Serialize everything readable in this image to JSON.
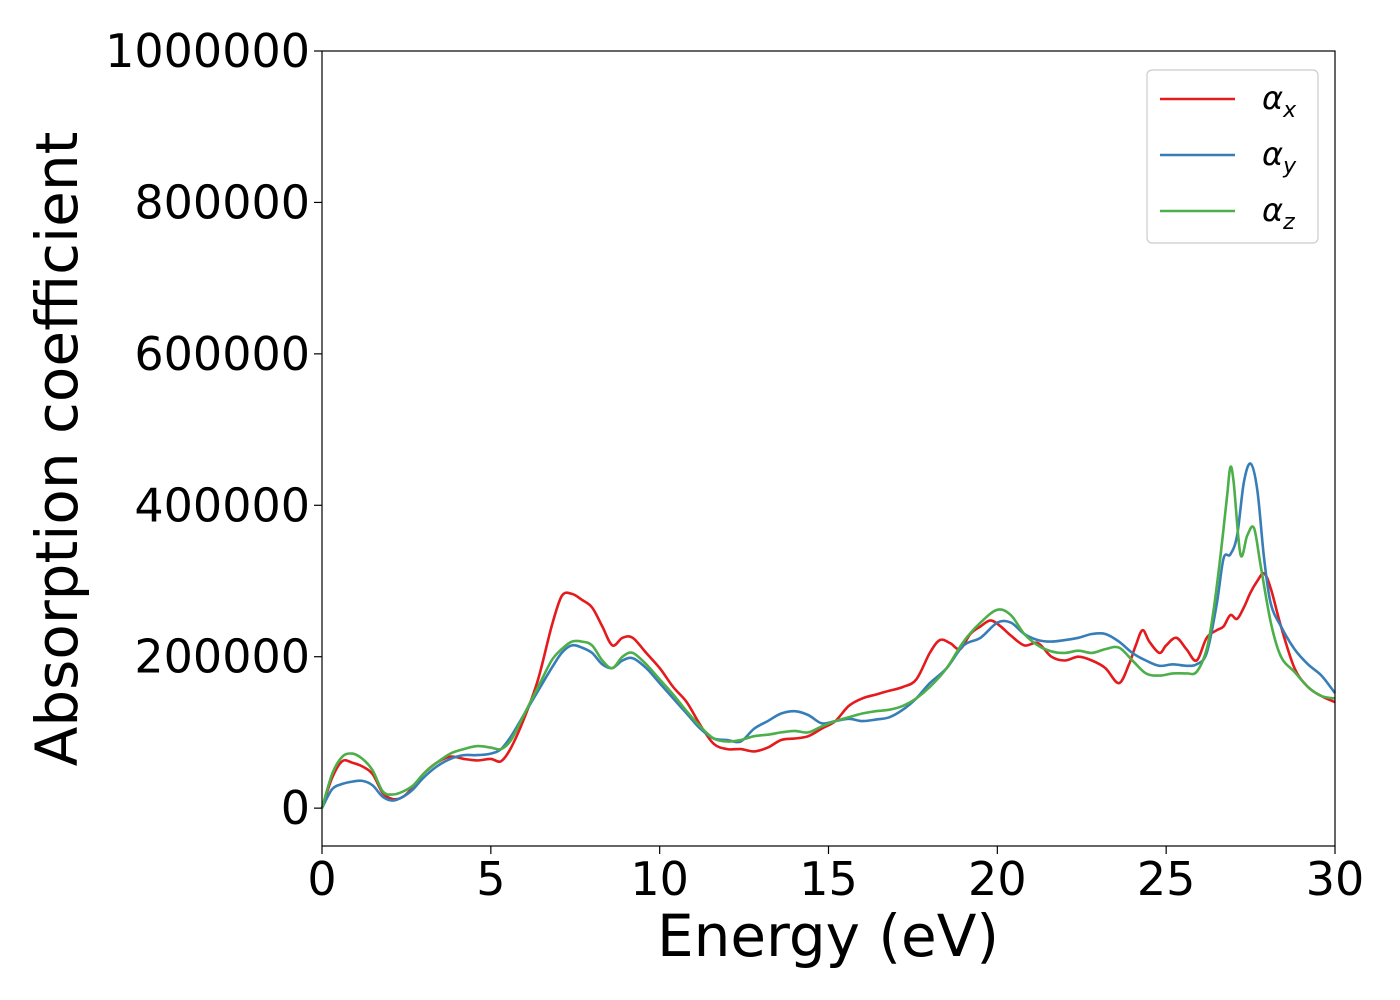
{
  "chart_data": {
    "type": "line",
    "title": "",
    "xlabel": "Energy (eV)",
    "ylabel": "Absorption coefficient",
    "xlim": [
      0,
      30
    ],
    "ylim": [
      -50000,
      1000000
    ],
    "xticks": [
      0,
      5,
      10,
      15,
      20,
      25,
      30
    ],
    "xtick_labels": [
      "0",
      "5",
      "10",
      "15",
      "20",
      "25",
      "30"
    ],
    "yticks": [
      0,
      200000,
      400000,
      600000,
      800000,
      1000000
    ],
    "ytick_labels": [
      "0",
      "200000",
      "400000",
      "600000",
      "800000",
      "1000000"
    ],
    "grid": false,
    "legend_position": "top-right",
    "series": [
      {
        "name": "α_x",
        "legend_base": "α",
        "legend_sub": "x",
        "color": "#e41a1c",
        "x": [
          0,
          0.3,
          0.6,
          0.9,
          1.2,
          1.5,
          1.8,
          2.1,
          2.4,
          2.7,
          3.0,
          3.4,
          3.8,
          4.2,
          4.6,
          5.0,
          5.3,
          5.6,
          6.0,
          6.4,
          6.8,
          7.1,
          7.4,
          7.7,
          8.0,
          8.3,
          8.6,
          8.9,
          9.2,
          9.6,
          10.0,
          10.4,
          10.8,
          11.2,
          11.6,
          12.0,
          12.4,
          12.8,
          13.2,
          13.6,
          14.0,
          14.4,
          14.8,
          15.2,
          15.6,
          16.0,
          16.4,
          16.8,
          17.2,
          17.6,
          18.0,
          18.3,
          18.6,
          18.9,
          19.2,
          19.5,
          19.8,
          20.1,
          20.4,
          20.8,
          21.2,
          21.6,
          22.0,
          22.4,
          22.8,
          23.2,
          23.6,
          23.9,
          24.1,
          24.3,
          24.5,
          24.8,
          25.0,
          25.3,
          25.6,
          25.9,
          26.2,
          26.5,
          26.7,
          26.9,
          27.1,
          27.3,
          27.5,
          27.7,
          27.9,
          28.1,
          28.4,
          28.8,
          29.2,
          29.6,
          30.0
        ],
        "y": [
          0,
          40000,
          62000,
          60000,
          55000,
          45000,
          20000,
          12000,
          15000,
          28000,
          45000,
          60000,
          68000,
          65000,
          63000,
          65000,
          62000,
          80000,
          120000,
          170000,
          240000,
          280000,
          283000,
          275000,
          265000,
          240000,
          215000,
          225000,
          225000,
          205000,
          185000,
          160000,
          140000,
          110000,
          85000,
          78000,
          78000,
          75000,
          80000,
          90000,
          92000,
          95000,
          105000,
          115000,
          135000,
          145000,
          150000,
          155000,
          160000,
          170000,
          205000,
          222000,
          218000,
          210000,
          230000,
          240000,
          248000,
          240000,
          228000,
          215000,
          218000,
          200000,
          195000,
          200000,
          195000,
          185000,
          165000,
          190000,
          215000,
          235000,
          220000,
          205000,
          215000,
          225000,
          210000,
          195000,
          225000,
          235000,
          240000,
          255000,
          250000,
          265000,
          285000,
          300000,
          310000,
          290000,
          240000,
          185000,
          160000,
          148000,
          140000
        ]
      },
      {
        "name": "α_y",
        "legend_base": "α",
        "legend_sub": "y",
        "color": "#377eb8",
        "x": [
          0,
          0.3,
          0.6,
          0.9,
          1.2,
          1.5,
          1.8,
          2.1,
          2.4,
          2.7,
          3.0,
          3.4,
          3.8,
          4.2,
          4.6,
          5.0,
          5.3,
          5.6,
          6.0,
          6.4,
          6.8,
          7.1,
          7.4,
          7.7,
          8.0,
          8.3,
          8.6,
          8.9,
          9.2,
          9.6,
          10.0,
          10.4,
          10.8,
          11.2,
          11.6,
          12.0,
          12.4,
          12.8,
          13.2,
          13.6,
          14.0,
          14.4,
          14.8,
          15.2,
          15.6,
          16.0,
          16.4,
          16.8,
          17.2,
          17.6,
          18.0,
          18.5,
          19.0,
          19.5,
          20.0,
          20.4,
          20.8,
          21.2,
          21.6,
          22.0,
          22.4,
          22.8,
          23.2,
          23.6,
          24.0,
          24.4,
          24.8,
          25.2,
          25.6,
          25.9,
          26.2,
          26.5,
          26.7,
          26.9,
          27.1,
          27.3,
          27.5,
          27.7,
          27.9,
          28.1,
          28.4,
          28.8,
          29.2,
          29.6,
          30.0
        ],
        "y": [
          0,
          25000,
          32000,
          35000,
          36000,
          30000,
          15000,
          10000,
          15000,
          25000,
          40000,
          55000,
          65000,
          70000,
          70000,
          72000,
          78000,
          95000,
          125000,
          155000,
          185000,
          205000,
          215000,
          212000,
          205000,
          190000,
          185000,
          195000,
          198000,
          185000,
          165000,
          145000,
          125000,
          105000,
          92000,
          90000,
          88000,
          105000,
          115000,
          125000,
          128000,
          123000,
          112000,
          115000,
          118000,
          115000,
          117000,
          120000,
          130000,
          145000,
          165000,
          185000,
          215000,
          225000,
          245000,
          245000,
          230000,
          222000,
          220000,
          222000,
          225000,
          230000,
          230000,
          220000,
          205000,
          195000,
          188000,
          190000,
          188000,
          190000,
          205000,
          270000,
          330000,
          335000,
          360000,
          430000,
          455000,
          420000,
          330000,
          270000,
          240000,
          210000,
          190000,
          175000,
          152000
        ]
      },
      {
        "name": "α_z",
        "legend_base": "α",
        "legend_sub": "z",
        "color": "#4daf4a",
        "x": [
          0,
          0.3,
          0.6,
          0.9,
          1.2,
          1.5,
          1.8,
          2.1,
          2.4,
          2.7,
          3.0,
          3.4,
          3.8,
          4.2,
          4.6,
          5.0,
          5.3,
          5.6,
          6.0,
          6.4,
          6.8,
          7.1,
          7.4,
          7.7,
          8.0,
          8.3,
          8.6,
          8.9,
          9.2,
          9.6,
          10.0,
          10.4,
          10.8,
          11.2,
          11.6,
          12.0,
          12.4,
          12.8,
          13.2,
          13.6,
          14.0,
          14.4,
          14.8,
          15.2,
          15.6,
          16.0,
          16.4,
          16.8,
          17.2,
          17.6,
          18.0,
          18.5,
          19.0,
          19.5,
          20.0,
          20.4,
          20.8,
          21.2,
          21.6,
          22.0,
          22.4,
          22.8,
          23.2,
          23.6,
          24.0,
          24.4,
          24.8,
          25.2,
          25.6,
          25.9,
          26.2,
          26.4,
          26.6,
          26.8,
          26.9,
          27.0,
          27.2,
          27.4,
          27.6,
          27.8,
          28.1,
          28.4,
          28.8,
          29.2,
          29.6,
          30.0
        ],
        "y": [
          0,
          45000,
          68000,
          72000,
          65000,
          50000,
          22000,
          18000,
          22000,
          30000,
          45000,
          60000,
          72000,
          78000,
          82000,
          80000,
          78000,
          90000,
          125000,
          160000,
          195000,
          210000,
          220000,
          220000,
          215000,
          195000,
          185000,
          200000,
          205000,
          190000,
          170000,
          150000,
          128000,
          108000,
          92000,
          88000,
          90000,
          95000,
          97000,
          100000,
          102000,
          100000,
          108000,
          115000,
          120000,
          125000,
          128000,
          130000,
          135000,
          145000,
          160000,
          185000,
          220000,
          245000,
          262000,
          255000,
          230000,
          215000,
          207000,
          205000,
          208000,
          205000,
          210000,
          212000,
          195000,
          178000,
          175000,
          178000,
          178000,
          180000,
          210000,
          260000,
          330000,
          410000,
          450000,
          430000,
          335000,
          360000,
          370000,
          320000,
          245000,
          200000,
          180000,
          160000,
          148000,
          145000
        ]
      }
    ]
  }
}
